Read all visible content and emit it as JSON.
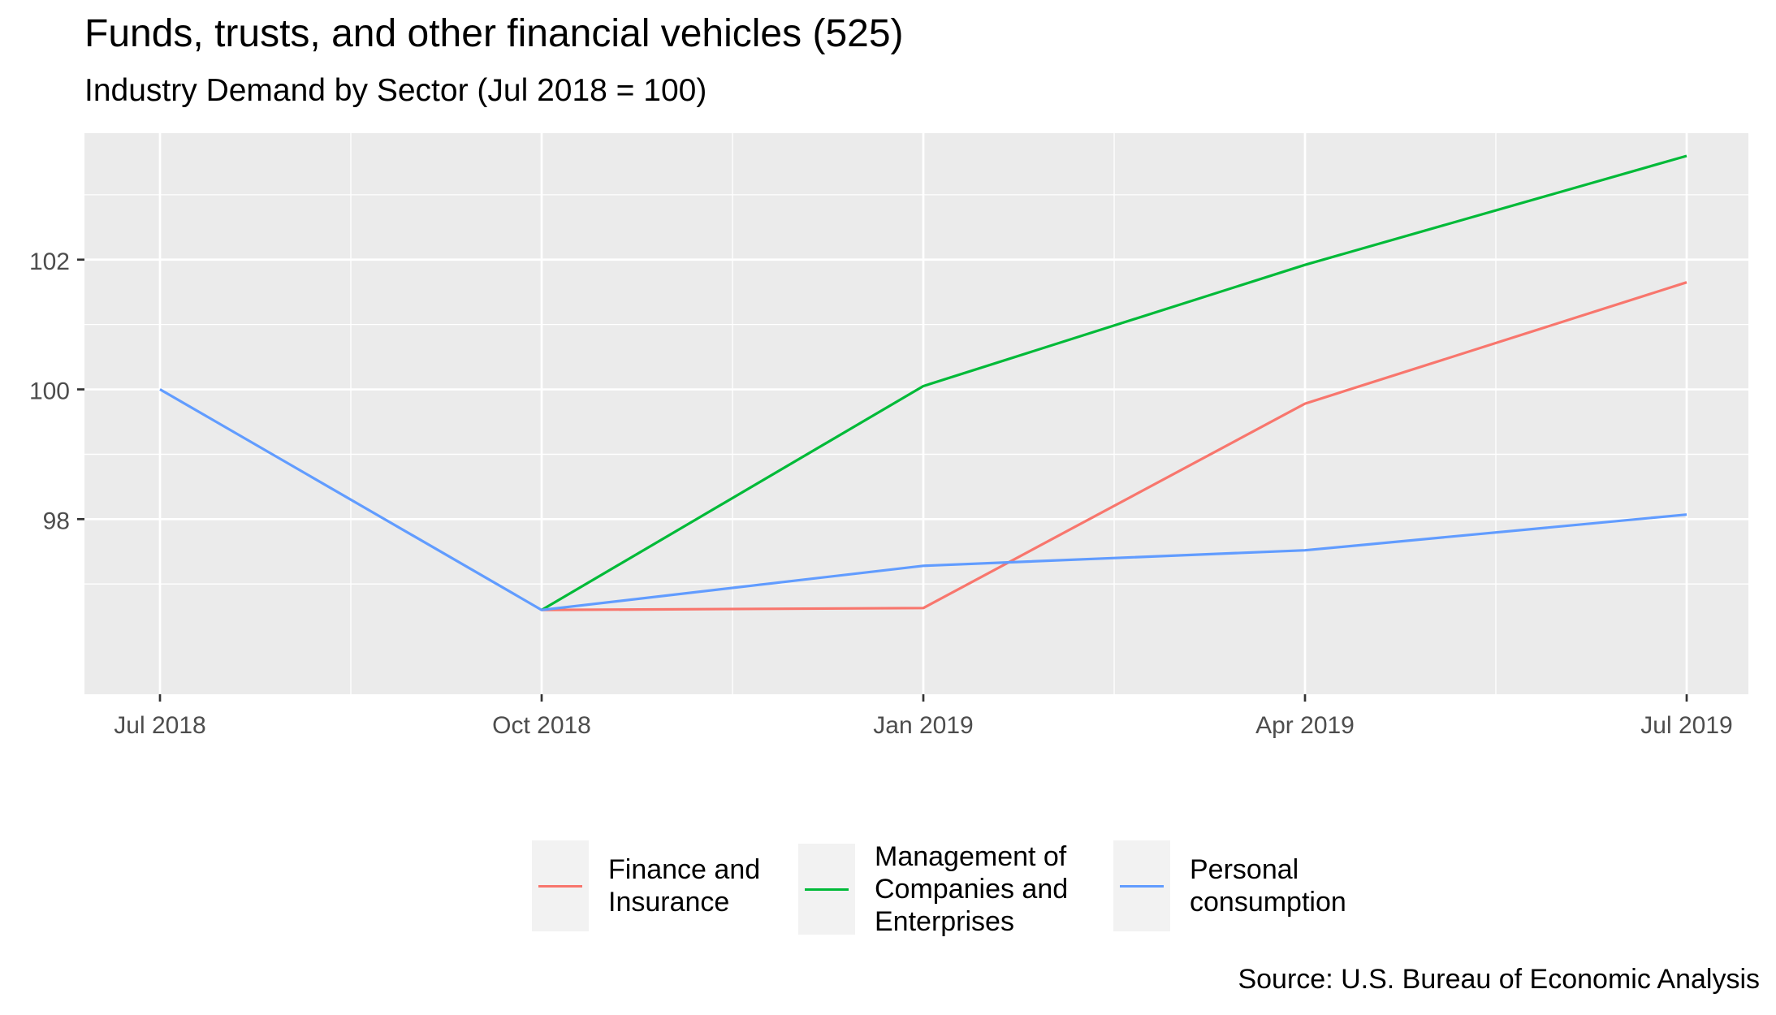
{
  "title": "Funds, trusts, and other financial vehicles (525)",
  "subtitle": "Industry Demand by Sector (Jul 2018 = 100)",
  "source": "Source: U.S. Bureau of Economic Analysis",
  "legend": [
    {
      "label": "Finance and Insurance",
      "color": "#F8766D"
    },
    {
      "label": "Management of Companies and Enterprises",
      "color": "#00BA38"
    },
    {
      "label": "Personal consumption",
      "color": "#619CFF"
    }
  ],
  "chart_data": {
    "type": "line",
    "x": [
      "Jul 2018",
      "Oct 2018",
      "Jan 2019",
      "Apr 2019",
      "Jul 2019"
    ],
    "xticks": [
      "Jul 2018",
      "Oct 2018",
      "Jan 2019",
      "Apr 2019",
      "Jul 2019"
    ],
    "yticks": [
      98,
      100,
      102
    ],
    "ylim": [
      95.3,
      103.95
    ],
    "grid": true,
    "legend_position": "bottom",
    "series": [
      {
        "name": "Finance and Insurance",
        "color": "#F8766D",
        "values": [
          null,
          96.6,
          96.63,
          99.78,
          101.65
        ]
      },
      {
        "name": "Management of Companies and Enterprises",
        "color": "#00BA38",
        "values": [
          null,
          96.6,
          100.05,
          101.92,
          103.6
        ]
      },
      {
        "name": "Personal consumption",
        "color": "#619CFF",
        "values": [
          100,
          96.6,
          97.28,
          97.52,
          98.07
        ]
      }
    ]
  }
}
